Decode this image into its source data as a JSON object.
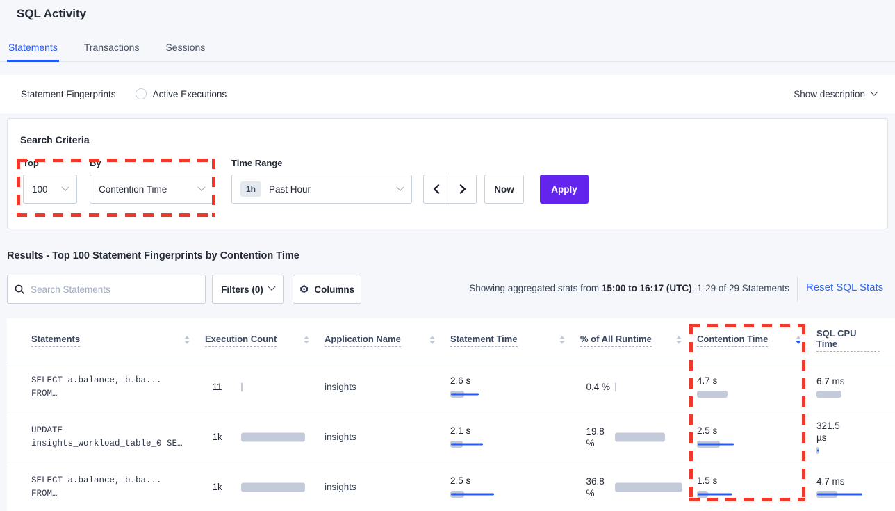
{
  "colors": {
    "accent_blue": "#2457F0",
    "link_blue": "#2D68F5",
    "apply_purple": "#6325EE",
    "annotation_red": "#EE3A2D",
    "bar_gray": "#C3CAD9",
    "bar_blue": "#2758F0"
  },
  "page": {
    "title": "SQL Activity"
  },
  "tabs": [
    {
      "label": "Statements",
      "active": true
    },
    {
      "label": "Transactions",
      "active": false
    },
    {
      "label": "Sessions",
      "active": false
    }
  ],
  "view_toggle": {
    "options": [
      {
        "label": "Statement Fingerprints",
        "selected": true
      },
      {
        "label": "Active Executions",
        "selected": false
      }
    ],
    "show_description_label": "Show description"
  },
  "search_criteria": {
    "heading": "Search Criteria",
    "top_label": "Top",
    "top_value": "100",
    "by_label": "By",
    "by_value": "Contention Time",
    "time_range_label": "Time Range",
    "time_range_badge": "1h",
    "time_range_value": "Past Hour",
    "now_label": "Now",
    "apply_label": "Apply"
  },
  "results": {
    "heading": "Results - Top 100 Statement Fingerprints by Contention Time",
    "search_placeholder": "Search Statements",
    "filters_label": "Filters (0)",
    "columns_label": "Columns",
    "stats_prefix": "Showing aggregated stats from ",
    "stats_bold": "15:00 to 16:17 (UTC)",
    "stats_suffix": ", 1-29 of 29 Statements",
    "reset_label": "Reset SQL Stats"
  },
  "table": {
    "columns": [
      {
        "label": "Statements",
        "sort": "none"
      },
      {
        "label": "Execution Count",
        "sort": "none"
      },
      {
        "label": "Application Name",
        "sort": "none"
      },
      {
        "label": "Statement Time",
        "sort": "none"
      },
      {
        "label": "% of All Runtime",
        "sort": "none"
      },
      {
        "label": "Contention Time",
        "sort": "desc"
      },
      {
        "label": "SQL CPU Time",
        "sort": "none"
      }
    ],
    "rows": [
      {
        "statement_line1": "SELECT a.balance, b.ba...",
        "statement_line2": "FROM…",
        "execution_count": "11",
        "application": "insights",
        "statement_time": "2.6 s",
        "pct_runtime": "0.4 %",
        "contention_time": "4.7 s",
        "cpu_time": "6.7 ms",
        "bars": {
          "exec": 2,
          "stmt_g": 20,
          "stmt_d": 40,
          "pct": 2,
          "cont_g": 44,
          "cont_d": 0,
          "cpu_g": 36,
          "cpu_d": 0
        }
      },
      {
        "statement_line1": "UPDATE",
        "statement_line2": "insights_workload_table_0 SE…",
        "execution_count": "1k",
        "application": "insights",
        "statement_time": "2.1 s",
        "pct_runtime": "19.8 %",
        "contention_time": "2.5 s",
        "cpu_time": "321.5 µs",
        "bars": {
          "exec": 92,
          "stmt_g": 18,
          "stmt_d": 46,
          "pct": 72,
          "cont_g": 33,
          "cont_d": 52,
          "cpu_g": 3,
          "cpu_d": 3
        }
      },
      {
        "statement_line1": "SELECT a.balance, b.ba...",
        "statement_line2": "FROM…",
        "execution_count": "1k",
        "application": "insights",
        "statement_time": "2.5 s",
        "pct_runtime": "36.8 %",
        "contention_time": "1.5 s",
        "cpu_time": "4.7 ms",
        "bars": {
          "exec": 92,
          "stmt_g": 20,
          "stmt_d": 62,
          "pct": 97,
          "cont_g": 16,
          "cont_d": 50,
          "cpu_g": 30,
          "cpu_d": 65
        }
      }
    ]
  }
}
